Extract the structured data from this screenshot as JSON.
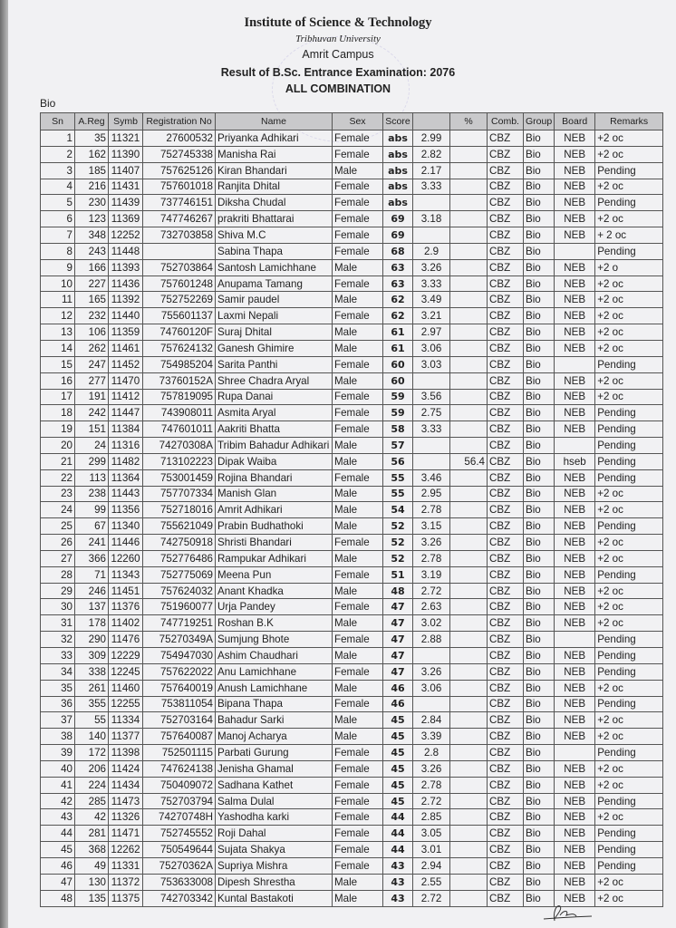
{
  "header": {
    "institute": "Institute of Science & Technology",
    "university": "Tribhuvan University",
    "campus": "Amrit Campus",
    "result_title": "Result of B.Sc. Entrance Examination: 2076",
    "combination": "ALL COMBINATION",
    "group_label": "Bio"
  },
  "table": {
    "columns": [
      "Sn",
      "A.Reg",
      "Symb",
      "Registration No",
      "Name",
      "Sex",
      "Score",
      "",
      "%",
      "Comb.",
      "Group",
      "Board",
      "Remarks"
    ],
    "rows": [
      [
        "1",
        "35",
        "11321",
        "27600532",
        "Priyanka Adhikari",
        "Female",
        "abs",
        "2.99",
        "",
        "CBZ",
        "Bio",
        "NEB",
        "+2 oc"
      ],
      [
        "2",
        "162",
        "11390",
        "752745338",
        "Manisha Rai",
        "Female",
        "abs",
        "2.82",
        "",
        "CBZ",
        "Bio",
        "NEB",
        "+2 oc"
      ],
      [
        "3",
        "185",
        "11407",
        "757625126",
        "Kiran Bhandari",
        "Male",
        "abs",
        "2.17",
        "",
        "CBZ",
        "Bio",
        "NEB",
        "Pending"
      ],
      [
        "4",
        "216",
        "11431",
        "757601018",
        "Ranjita Dhital",
        "Female",
        "abs",
        "3.33",
        "",
        "CBZ",
        "Bio",
        "NEB",
        "+2 oc"
      ],
      [
        "5",
        "230",
        "11439",
        "737746151",
        "Diksha Chudal",
        "Female",
        "abs",
        "",
        "",
        "CBZ",
        "Bio",
        "NEB",
        "Pending"
      ],
      [
        "6",
        "123",
        "11369",
        "747746267",
        "prakriti Bhattarai",
        "Female",
        "69",
        "3.18",
        "",
        "CBZ",
        "Bio",
        "NEB",
        "+2 oc"
      ],
      [
        "7",
        "348",
        "12252",
        "732703858",
        "Shiva M.C",
        "Female",
        "69",
        "",
        "",
        "CBZ",
        "Bio",
        "NEB",
        "+ 2 oc"
      ],
      [
        "8",
        "243",
        "11448",
        "",
        "Sabina Thapa",
        "Female",
        "68",
        "2.9",
        "",
        "CBZ",
        "Bio",
        "",
        "Pending"
      ],
      [
        "9",
        "166",
        "11393",
        "752703864",
        "Santosh Lamichhane",
        "Male",
        "63",
        "3.26",
        "",
        "CBZ",
        "Bio",
        "NEB",
        "+2 o"
      ],
      [
        "10",
        "227",
        "11436",
        "757601248",
        "Anupama Tamang",
        "Female",
        "63",
        "3.33",
        "",
        "CBZ",
        "Bio",
        "NEB",
        "+2 oc"
      ],
      [
        "11",
        "165",
        "11392",
        "752752269",
        "Samir paudel",
        "Male",
        "62",
        "3.49",
        "",
        "CBZ",
        "Bio",
        "NEB",
        "+2 oc"
      ],
      [
        "12",
        "232",
        "11440",
        "755601137",
        "Laxmi Nepali",
        "Female",
        "62",
        "3.21",
        "",
        "CBZ",
        "Bio",
        "NEB",
        "+2 oc"
      ],
      [
        "13",
        "106",
        "11359",
        "74760120F",
        "Suraj Dhital",
        "Male",
        "61",
        "2.97",
        "",
        "CBZ",
        "Bio",
        "NEB",
        "+2 oc"
      ],
      [
        "14",
        "262",
        "11461",
        "757624132",
        "Ganesh Ghimire",
        "Male",
        "61",
        "3.06",
        "",
        "CBZ",
        "Bio",
        "NEB",
        "+2 oc"
      ],
      [
        "15",
        "247",
        "11452",
        "754985204",
        "Sarita Panthi",
        "Female",
        "60",
        "3.03",
        "",
        "CBZ",
        "Bio",
        "",
        "Pending"
      ],
      [
        "16",
        "277",
        "11470",
        "73760152A",
        "Shree Chadra Aryal",
        "Male",
        "60",
        "",
        "",
        "CBZ",
        "Bio",
        "NEB",
        "+2 oc"
      ],
      [
        "17",
        "191",
        "11412",
        "757819095",
        "Rupa Danai",
        "Female",
        "59",
        "3.56",
        "",
        "CBZ",
        "Bio",
        "NEB",
        "+2 oc"
      ],
      [
        "18",
        "242",
        "11447",
        "743908011",
        "Asmita Aryal",
        "Female",
        "59",
        "2.75",
        "",
        "CBZ",
        "Bio",
        "NEB",
        "Pending"
      ],
      [
        "19",
        "151",
        "11384",
        "747601011",
        "Aakriti Bhatta",
        "Female",
        "58",
        "3.33",
        "",
        "CBZ",
        "Bio",
        "NEB",
        "Pending"
      ],
      [
        "20",
        "24",
        "11316",
        "74270308A",
        "Tribim Bahadur Adhikari",
        "Male",
        "57",
        "",
        "",
        "CBZ",
        "Bio",
        "",
        "Pending"
      ],
      [
        "21",
        "299",
        "11482",
        "713102223",
        "Dipak Waiba",
        "Male",
        "56",
        "",
        "56.4",
        "CBZ",
        "Bio",
        "hseb",
        "Pending"
      ],
      [
        "22",
        "113",
        "11364",
        "753001459",
        "Rojina Bhandari",
        "Female",
        "55",
        "3.46",
        "",
        "CBZ",
        "Bio",
        "NEB",
        "Pending"
      ],
      [
        "23",
        "238",
        "11443",
        "757707334",
        "Manish Glan",
        "Male",
        "55",
        "2.95",
        "",
        "CBZ",
        "Bio",
        "NEB",
        "+2 oc"
      ],
      [
        "24",
        "99",
        "11356",
        "752718016",
        "Amrit Adhikari",
        "Male",
        "54",
        "2.78",
        "",
        "CBZ",
        "Bio",
        "NEB",
        "+2 oc"
      ],
      [
        "25",
        "67",
        "11340",
        "755621049",
        "Prabin Budhathoki",
        "Male",
        "52",
        "3.15",
        "",
        "CBZ",
        "Bio",
        "NEB",
        "Pending"
      ],
      [
        "26",
        "241",
        "11446",
        "742750918",
        "Shristi Bhandari",
        "Female",
        "52",
        "3.26",
        "",
        "CBZ",
        "Bio",
        "NEB",
        "+2 oc"
      ],
      [
        "27",
        "366",
        "12260",
        "752776486",
        "Rampukar Adhikari",
        "Male",
        "52",
        "2.78",
        "",
        "CBZ",
        "Bio",
        "NEB",
        "+2 oc"
      ],
      [
        "28",
        "71",
        "11343",
        "752775069",
        "Meena Pun",
        "Female",
        "51",
        "3.19",
        "",
        "CBZ",
        "Bio",
        "NEB",
        "Pending"
      ],
      [
        "29",
        "246",
        "11451",
        "757624032",
        "Anant Khadka",
        "Male",
        "48",
        "2.72",
        "",
        "CBZ",
        "Bio",
        "NEB",
        "+2 oc"
      ],
      [
        "30",
        "137",
        "11376",
        "751960077",
        "Urja Pandey",
        "Female",
        "47",
        "2.63",
        "",
        "CBZ",
        "Bio",
        "NEB",
        "+2 oc"
      ],
      [
        "31",
        "178",
        "11402",
        "747719251",
        "Roshan B.K",
        "Male",
        "47",
        "3.02",
        "",
        "CBZ",
        "Bio",
        "NEB",
        "+2 oc"
      ],
      [
        "32",
        "290",
        "11476",
        "75270349A",
        "Sumjung Bhote",
        "Female",
        "47",
        "2.88",
        "",
        "CBZ",
        "Bio",
        "",
        "Pending"
      ],
      [
        "33",
        "309",
        "12229",
        "754947030",
        "Ashim Chaudhari",
        "Male",
        "47",
        "",
        "",
        "CBZ",
        "Bio",
        "NEB",
        "Pending"
      ],
      [
        "34",
        "338",
        "12245",
        "757622022",
        "Anu Lamichhane",
        "Female",
        "47",
        "3.26",
        "",
        "CBZ",
        "Bio",
        "NEB",
        "Pending"
      ],
      [
        "35",
        "261",
        "11460",
        "757640019",
        "Anush Lamichhane",
        "Male",
        "46",
        "3.06",
        "",
        "CBZ",
        "Bio",
        "NEB",
        "+2 oc"
      ],
      [
        "36",
        "355",
        "12255",
        "753811054",
        "Bipana Thapa",
        "Female",
        "46",
        "",
        "",
        "CBZ",
        "Bio",
        "NEB",
        "Pending"
      ],
      [
        "37",
        "55",
        "11334",
        "752703164",
        "Bahadur Sarki",
        "Male",
        "45",
        "2.84",
        "",
        "CBZ",
        "Bio",
        "NEB",
        "+2 oc"
      ],
      [
        "38",
        "140",
        "11377",
        "757640087",
        "Manoj Acharya",
        "Male",
        "45",
        "3.39",
        "",
        "CBZ",
        "Bio",
        "NEB",
        "+2 oc"
      ],
      [
        "39",
        "172",
        "11398",
        "752501115",
        "Parbati Gurung",
        "Female",
        "45",
        "2.8",
        "",
        "CBZ",
        "Bio",
        "",
        "Pending"
      ],
      [
        "40",
        "206",
        "11424",
        "747624138",
        "Jenisha Ghamal",
        "Female",
        "45",
        "3.26",
        "",
        "CBZ",
        "Bio",
        "NEB",
        "+2 oc"
      ],
      [
        "41",
        "224",
        "11434",
        "750409072",
        "Sadhana Kathet",
        "Female",
        "45",
        "2.78",
        "",
        "CBZ",
        "Bio",
        "NEB",
        "+2 oc"
      ],
      [
        "42",
        "285",
        "11473",
        "752703794",
        "Salma Dulal",
        "Female",
        "45",
        "2.72",
        "",
        "CBZ",
        "Bio",
        "NEB",
        "Pending"
      ],
      [
        "43",
        "42",
        "11326",
        "74270748H",
        "Yashodha karki",
        "Female",
        "44",
        "2.85",
        "",
        "CBZ",
        "Bio",
        "NEB",
        "+2 oc"
      ],
      [
        "44",
        "281",
        "11471",
        "752745552",
        "Roji Dahal",
        "Female",
        "44",
        "3.05",
        "",
        "CBZ",
        "Bio",
        "NEB",
        "Pending"
      ],
      [
        "45",
        "368",
        "12262",
        "750549644",
        "Sujata Shakya",
        "Female",
        "44",
        "3.01",
        "",
        "CBZ",
        "Bio",
        "NEB",
        "Pending"
      ],
      [
        "46",
        "49",
        "11331",
        "75270362A",
        "Supriya Mishra",
        "Female",
        "43",
        "2.94",
        "",
        "CBZ",
        "Bio",
        "NEB",
        "Pending"
      ],
      [
        "47",
        "130",
        "11372",
        "753633008",
        "Dipesh Shrestha",
        "Male",
        "43",
        "2.55",
        "",
        "CBZ",
        "Bio",
        "NEB",
        "+2 oc"
      ],
      [
        "48",
        "135",
        "11375",
        "742703342",
        "Kuntal Bastakoti",
        "Male",
        "43",
        "2.72",
        "",
        "CBZ",
        "Bio",
        "NEB",
        "+2 oc"
      ]
    ]
  },
  "colors": {
    "header_bg": "#c9c9cb",
    "paper": "#f1f1f3",
    "stamp": "#7b74c9"
  }
}
